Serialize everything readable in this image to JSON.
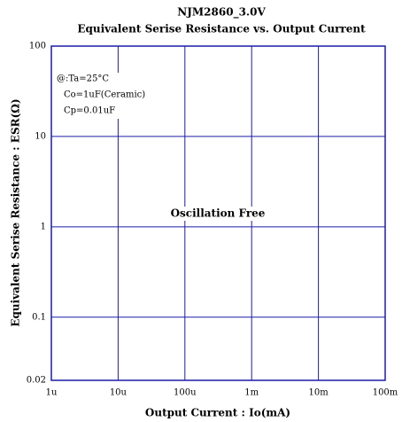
{
  "chart_data": {
    "type": "line",
    "title": "NJM2860_3.0V",
    "subtitle": "Equivalent Serise Resistance vs. Output Current",
    "xlabel": "Output Current : Io(mA)",
    "ylabel": "Equivalent Serise Resistance : ESR(Ω)",
    "xscale": "log",
    "yscale": "log",
    "xlim": [
      1e-06,
      0.1
    ],
    "xticks": [
      {
        "value": 1e-06,
        "label": "1u"
      },
      {
        "value": 1e-05,
        "label": "10u"
      },
      {
        "value": 0.0001,
        "label": "100u"
      },
      {
        "value": 0.001,
        "label": "1m"
      },
      {
        "value": 0.01,
        "label": "10m"
      },
      {
        "value": 0.1,
        "label": "100m"
      }
    ],
    "ylim": [
      0.02,
      100
    ],
    "yticks": [
      0.02,
      0.1,
      1,
      10,
      100
    ],
    "grid": true,
    "color": "#1c1ca8",
    "notes": [
      "@:Ta=25°C",
      "Co=1uF(Ceramic)",
      "Cp=0.01uF"
    ],
    "annotation": "Oscillation Free"
  }
}
